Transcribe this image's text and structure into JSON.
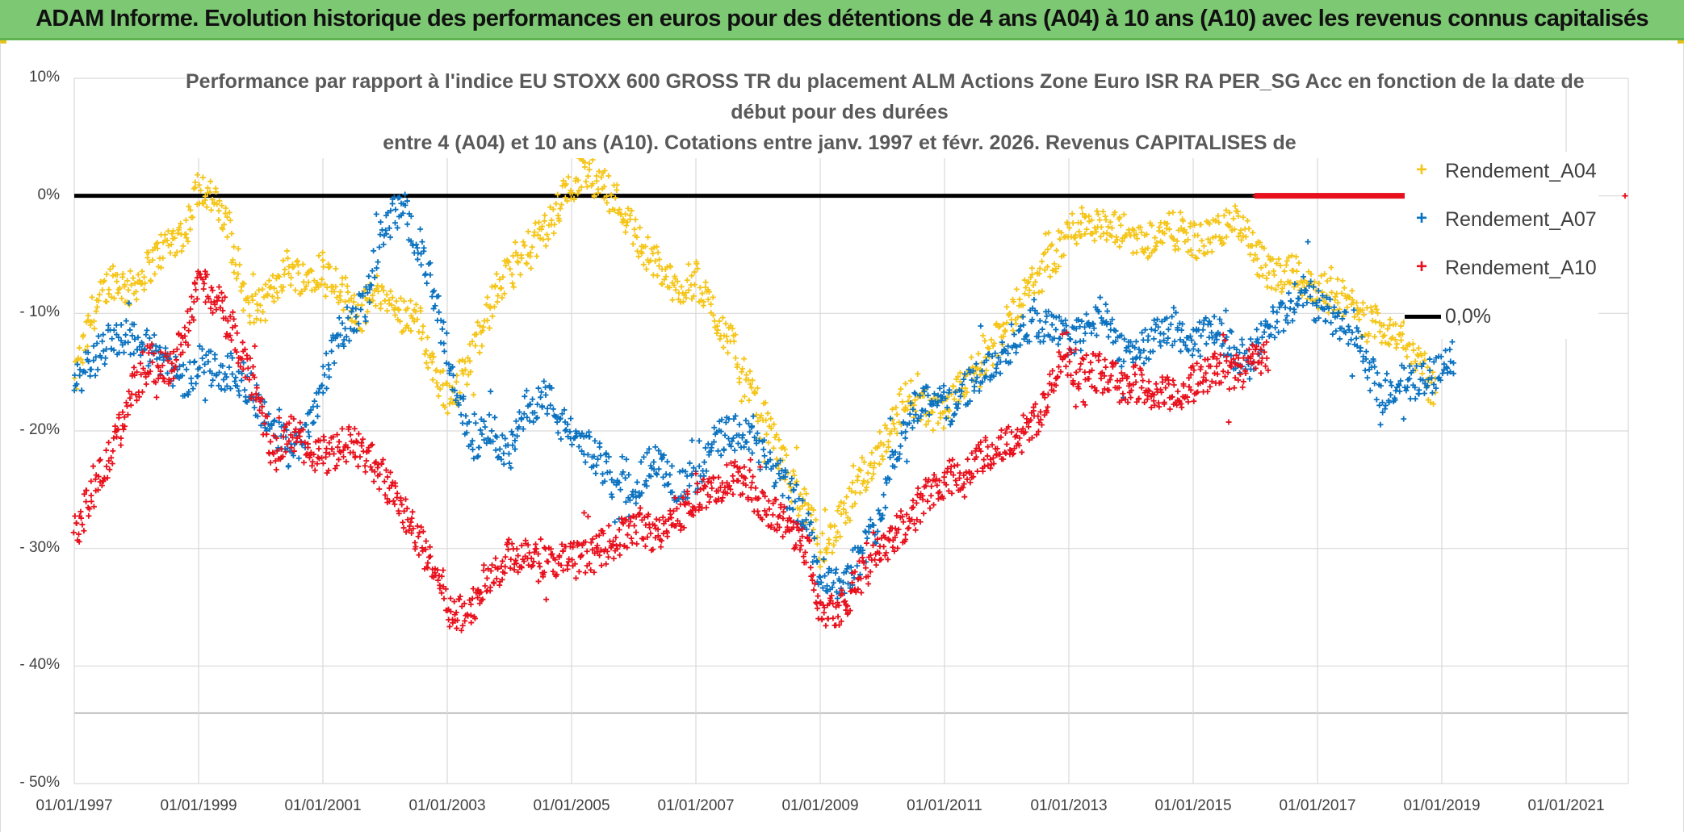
{
  "header": {
    "banner_title": "ADAM Informe. Evolution historique des performances en euros pour des détentions de 4 ans (A04) à 10 ans (A10) avec les revenus connus capitalisés"
  },
  "colors": {
    "banner_bg": "#7dc873",
    "a04": "#f5c518",
    "a07": "#0b72c0",
    "a10": "#e8101c",
    "zero_line": "#000000",
    "grid": "#d9d9d9",
    "axis_text": "#404040"
  },
  "chart_data": {
    "type": "scatter",
    "title_lines": [
      "Performance par rapport à l'indice EU STOXX 600 GROSS TR  du placement ALM Actions Zone Euro ISR RA PER_SG Acc en fonction de la date de",
      "début pour des durées",
      "entre 4 (A04) et 10 ans (A10). Cotations entre janv. 1997 et févr. 2026. Revenus CAPITALISES de"
    ],
    "x_axis": {
      "min": 1997.0,
      "max": 2022.0,
      "tick_values": [
        1997,
        1999,
        2001,
        2003,
        2005,
        2007,
        2009,
        2011,
        2013,
        2015,
        2017,
        2019,
        2021
      ],
      "tick_labels": [
        "01/01/1997",
        "01/01/1999",
        "01/01/2001",
        "01/01/2003",
        "01/01/2005",
        "01/01/2007",
        "01/01/2009",
        "01/01/2011",
        "01/01/2013",
        "01/01/2015",
        "01/01/2017",
        "01/01/2019",
        "01/01/2021"
      ]
    },
    "y_axis": {
      "min": -50,
      "max": 10,
      "tick_values": [
        10,
        0,
        -10,
        -20,
        -30,
        -40,
        -50
      ],
      "tick_labels": [
        "10%",
        "0%",
        "- 10%",
        "- 20%",
        "- 30%",
        "- 40%",
        "- 50%"
      ],
      "extra_gridline": -44
    },
    "legend": [
      {
        "name": "Rendement_A04",
        "marker": "plus",
        "color_key": "a04"
      },
      {
        "name": "Rendement_A07",
        "marker": "plus",
        "color_key": "a07"
      },
      {
        "name": "Rendement_A10",
        "marker": "plus",
        "color_key": "a10"
      },
      {
        "name": "0,0%",
        "marker": "line",
        "color_key": "zero_line"
      }
    ],
    "series": [
      {
        "name": "Rendement_A04",
        "x": [
          1997.0,
          1997.3,
          1997.6,
          1997.9,
          1998.2,
          1998.5,
          1998.8,
          1999.0,
          1999.2,
          1999.5,
          1999.8,
          2000.1,
          2000.4,
          2000.7,
          2001.0,
          2001.3,
          2001.6,
          2001.9,
          2002.2,
          2002.5,
          2002.8,
          2003.0,
          2003.2,
          2003.5,
          2003.8,
          2004.1,
          2004.4,
          2004.7,
          2005.0,
          2005.2,
          2005.5,
          2005.8,
          2006.1,
          2006.4,
          2006.7,
          2007.0,
          2007.3,
          2007.6,
          2007.9,
          2008.2,
          2008.5,
          2008.8,
          2009.0,
          2009.2,
          2009.5,
          2009.8,
          2010.1,
          2010.4,
          2010.7,
          2011.0,
          2011.3,
          2011.6,
          2011.9,
          2012.2,
          2012.5,
          2012.8,
          2013.0,
          2013.3,
          2013.6,
          2013.9,
          2014.2,
          2014.5,
          2014.8,
          2015.1,
          2015.4,
          2015.7,
          2016.0,
          2016.3,
          2016.6,
          2016.9,
          2017.2,
          2017.5,
          2017.8,
          2018.1,
          2018.4,
          2018.7,
          2018.9
        ],
        "y": [
          -16,
          -10,
          -7,
          -8,
          -6,
          -4,
          -3,
          1,
          0,
          -3,
          -10,
          -9,
          -6,
          -7,
          -6,
          -8,
          -10,
          -8,
          -10,
          -10,
          -15,
          -17,
          -16,
          -12,
          -8,
          -6,
          -4,
          -2,
          1,
          2,
          1,
          -1,
          -4,
          -6,
          -8,
          -7,
          -10,
          -13,
          -17,
          -20,
          -24,
          -27,
          -30,
          -29,
          -26,
          -23,
          -20,
          -17,
          -18,
          -19,
          -16,
          -14,
          -12,
          -9,
          -7,
          -5,
          -3,
          -2,
          -3,
          -3,
          -4,
          -3,
          -3,
          -4,
          -3,
          -2,
          -5,
          -7,
          -6,
          -8,
          -8,
          -9,
          -11,
          -11,
          -12,
          -15,
          -17
        ]
      },
      {
        "name": "Rendement_A07",
        "x": [
          1997.0,
          1997.3,
          1997.6,
          1997.9,
          1998.2,
          1998.5,
          1998.8,
          1999.0,
          1999.3,
          1999.6,
          1999.9,
          2000.2,
          2000.5,
          2000.8,
          2001.1,
          2001.4,
          2001.7,
          2002.0,
          2002.3,
          2002.6,
          2002.9,
          2003.1,
          2003.4,
          2003.7,
          2004.0,
          2004.3,
          2004.6,
          2004.9,
          2005.2,
          2005.5,
          2005.8,
          2006.1,
          2006.4,
          2006.7,
          2007.0,
          2007.3,
          2007.6,
          2007.9,
          2008.2,
          2008.5,
          2008.8,
          2009.0,
          2009.3,
          2009.6,
          2009.9,
          2010.2,
          2010.5,
          2010.8,
          2011.1,
          2011.4,
          2011.7,
          2012.0,
          2012.3,
          2012.6,
          2012.9,
          2013.2,
          2013.5,
          2013.8,
          2014.1,
          2014.4,
          2014.7,
          2015.0,
          2015.3,
          2015.6,
          2015.9,
          2016.2,
          2016.5,
          2016.8,
          2017.1,
          2017.4,
          2017.7,
          2018.0,
          2018.3,
          2018.6,
          2018.9,
          2019.2
        ],
        "y": [
          -16,
          -14,
          -12,
          -12,
          -13,
          -14,
          -16,
          -14,
          -15,
          -15,
          -17,
          -20,
          -22,
          -19,
          -14,
          -11,
          -9,
          -2,
          -1,
          -5,
          -11,
          -16,
          -21,
          -20,
          -22,
          -18,
          -17,
          -20,
          -21,
          -23,
          -25,
          -24,
          -22,
          -25,
          -24,
          -21,
          -20,
          -21,
          -23,
          -25,
          -28,
          -32,
          -33,
          -31,
          -28,
          -22,
          -18,
          -17,
          -18,
          -16,
          -15,
          -13,
          -11,
          -11,
          -12,
          -12,
          -10,
          -13,
          -13,
          -12,
          -11,
          -13,
          -11,
          -13,
          -14,
          -11,
          -10,
          -8,
          -10,
          -11,
          -13,
          -17,
          -16,
          -16,
          -15,
          -13
        ]
      },
      {
        "name": "Rendement_A10",
        "x": [
          1997.0,
          1997.3,
          1997.6,
          1997.9,
          1998.2,
          1998.5,
          1998.8,
          1999.0,
          1999.3,
          1999.6,
          1999.9,
          2000.2,
          2000.5,
          2000.8,
          2001.1,
          2001.4,
          2001.7,
          2002.0,
          2002.3,
          2002.6,
          2002.9,
          2003.1,
          2003.4,
          2003.7,
          2004.0,
          2004.3,
          2004.6,
          2004.9,
          2005.2,
          2005.5,
          2005.8,
          2006.1,
          2006.4,
          2006.7,
          2007.0,
          2007.3,
          2007.6,
          2007.9,
          2008.2,
          2008.5,
          2008.8,
          2009.0,
          2009.3,
          2009.6,
          2009.9,
          2010.2,
          2010.5,
          2010.8,
          2011.1,
          2011.4,
          2011.7,
          2012.0,
          2012.3,
          2012.6,
          2012.9,
          2013.2,
          2013.5,
          2013.8,
          2014.1,
          2014.4,
          2014.7,
          2015.0,
          2015.3,
          2015.6,
          2015.9,
          2016.2
        ],
        "y": [
          -29,
          -25,
          -22,
          -17,
          -14,
          -15,
          -12,
          -7,
          -9,
          -12,
          -16,
          -22,
          -20,
          -22,
          -22,
          -21,
          -22,
          -24,
          -27,
          -30,
          -33,
          -36,
          -35,
          -32,
          -31,
          -30,
          -31,
          -31,
          -31,
          -30,
          -29,
          -28,
          -29,
          -27,
          -26,
          -25,
          -24,
          -25,
          -27,
          -28,
          -30,
          -35,
          -35,
          -33,
          -30,
          -29,
          -27,
          -25,
          -24,
          -23,
          -22,
          -21,
          -20,
          -18,
          -14,
          -15,
          -15,
          -16,
          -16,
          -17,
          -17,
          -16,
          -15,
          -15,
          -14,
          -14
        ]
      },
      {
        "name": "0,0%",
        "type": "line",
        "x": [
          1997.0,
          2016.0
        ],
        "y": [
          0,
          0
        ]
      },
      {
        "name": "0,0% (markers)",
        "type": "dense_markers",
        "color_key": "a10",
        "x_range": [
          2016.0,
          2018.7
        ],
        "y": 0
      }
    ]
  }
}
